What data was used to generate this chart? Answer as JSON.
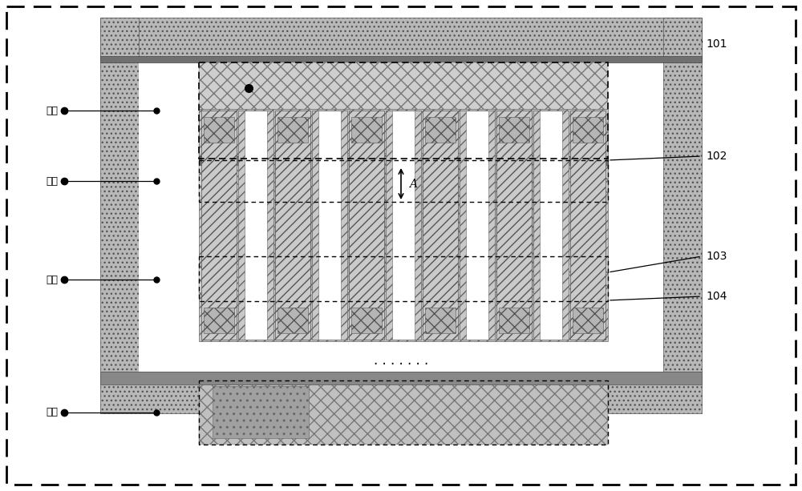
{
  "fig_width": 10.0,
  "fig_height": 6.13,
  "bg_color": "#ffffff",
  "c_frame": "#b0b0b0",
  "c_xhatch_light": "#d0d0d0",
  "c_xhatch_dark": "#a8a8a8",
  "c_brick": "#c8c8c8",
  "c_dark": "#808080",
  "c_white": "#ffffff",
  "c_black": "#000000",
  "labels_left": [
    [
      "栅极",
      0.72
    ],
    [
      "漏极",
      0.535
    ],
    [
      "源极",
      0.375
    ],
    [
      "衬底",
      0.175
    ]
  ],
  "labels_right": [
    [
      "101",
      0.86
    ],
    [
      "102",
      0.645
    ],
    [
      "103",
      0.485
    ],
    [
      "104",
      0.415
    ]
  ],
  "arrow_label": "A"
}
